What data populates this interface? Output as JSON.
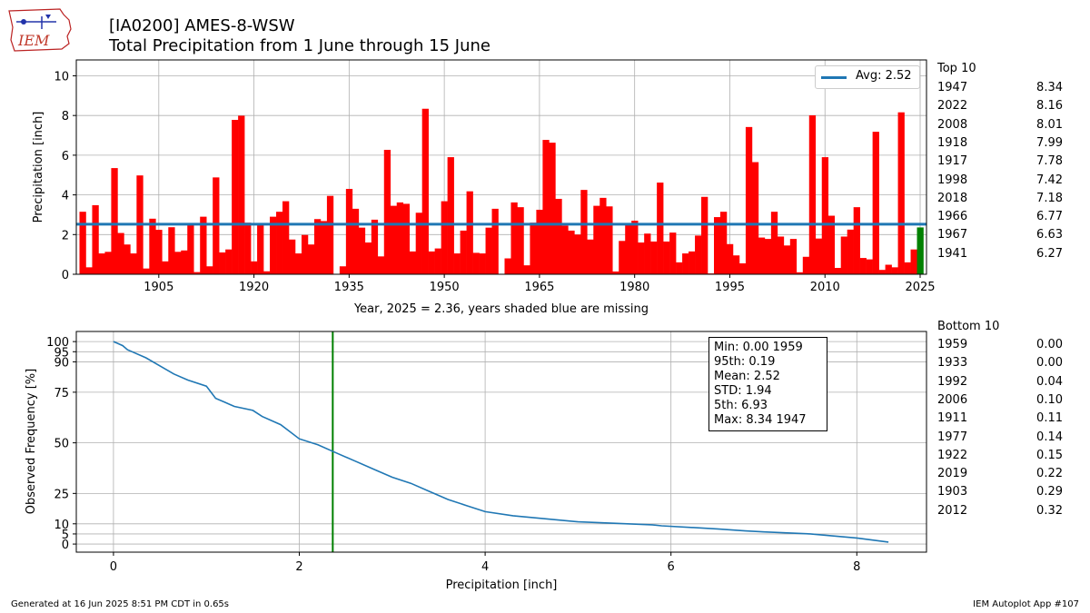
{
  "header": {
    "title_line1": "[IA0200] AMES-8-WSW",
    "title_line2": "Total Precipitation from 1 June through 15 June",
    "logo_text": "IEM"
  },
  "footer": {
    "generated": "Generated at 16 Jun 2025 8:51 PM CDT in 0.65s",
    "app": "IEM Autoplot App #107"
  },
  "top10": {
    "header": "Top 10",
    "rows": [
      {
        "year": "1947",
        "value": "8.34"
      },
      {
        "year": "2022",
        "value": "8.16"
      },
      {
        "year": "2008",
        "value": "8.01"
      },
      {
        "year": "1918",
        "value": "7.99"
      },
      {
        "year": "1917",
        "value": "7.78"
      },
      {
        "year": "1998",
        "value": "7.42"
      },
      {
        "year": "2018",
        "value": "7.18"
      },
      {
        "year": "1966",
        "value": "6.77"
      },
      {
        "year": "1967",
        "value": "6.63"
      },
      {
        "year": "1941",
        "value": "6.27"
      }
    ]
  },
  "bottom10": {
    "header": "Bottom 10",
    "rows": [
      {
        "year": "1959",
        "value": "0.00"
      },
      {
        "year": "1933",
        "value": "0.00"
      },
      {
        "year": "1992",
        "value": "0.04"
      },
      {
        "year": "2006",
        "value": "0.10"
      },
      {
        "year": "1911",
        "value": "0.11"
      },
      {
        "year": "1977",
        "value": "0.14"
      },
      {
        "year": "1922",
        "value": "0.15"
      },
      {
        "year": "2019",
        "value": "0.22"
      },
      {
        "year": "1903",
        "value": "0.29"
      },
      {
        "year": "2012",
        "value": "0.32"
      }
    ]
  },
  "stats": [
    "Min: 0.00 1959",
    "95th: 0.19",
    "Mean: 2.52",
    "STD: 1.94",
    "5th: 6.93",
    "Max: 8.34 1947"
  ],
  "colors": {
    "bar": "#ff0000",
    "current_year_bar": "#008000",
    "average_line": "#1f77b4",
    "cdf_line": "#1f77b4",
    "marker_line": "#008000",
    "grid": "#b0b0b0"
  },
  "chart_data": [
    {
      "type": "bar",
      "ylabel": "Precipitation [inch]",
      "xlabel": "Year, 2025 = 2.36, years shaded blue are missing",
      "xlim": [
        1892,
        2026
      ],
      "ylim": [
        0,
        10.8
      ],
      "xticks": [
        1905,
        1920,
        1935,
        1950,
        1965,
        1980,
        1995,
        2010,
        2025
      ],
      "yticks": [
        0,
        2,
        4,
        6,
        8,
        10
      ],
      "grid": true,
      "legend": {
        "label": "Avg: 2.52",
        "placement": "top-right"
      },
      "average": 2.52,
      "highlight_year": 2025,
      "x": [
        1893,
        1894,
        1895,
        1896,
        1897,
        1898,
        1899,
        1900,
        1901,
        1902,
        1903,
        1904,
        1905,
        1906,
        1907,
        1908,
        1909,
        1910,
        1911,
        1912,
        1913,
        1914,
        1915,
        1916,
        1917,
        1918,
        1919,
        1920,
        1921,
        1922,
        1923,
        1924,
        1925,
        1926,
        1927,
        1928,
        1929,
        1930,
        1931,
        1932,
        1933,
        1934,
        1935,
        1936,
        1937,
        1938,
        1939,
        1940,
        1941,
        1942,
        1943,
        1944,
        1945,
        1946,
        1947,
        1948,
        1949,
        1950,
        1951,
        1952,
        1953,
        1954,
        1955,
        1956,
        1957,
        1958,
        1959,
        1960,
        1961,
        1962,
        1963,
        1964,
        1965,
        1966,
        1967,
        1968,
        1969,
        1970,
        1971,
        1972,
        1973,
        1974,
        1975,
        1976,
        1977,
        1978,
        1979,
        1980,
        1981,
        1982,
        1983,
        1984,
        1985,
        1986,
        1987,
        1988,
        1989,
        1990,
        1991,
        1992,
        1993,
        1994,
        1995,
        1996,
        1997,
        1998,
        1999,
        2000,
        2001,
        2002,
        2003,
        2004,
        2005,
        2006,
        2007,
        2008,
        2009,
        2010,
        2011,
        2012,
        2013,
        2014,
        2015,
        2016,
        2017,
        2018,
        2019,
        2020,
        2021,
        2022,
        2023,
        2024,
        2025
      ],
      "values": [
        3.15,
        0.35,
        3.48,
        1.05,
        1.13,
        5.35,
        2.08,
        1.5,
        1.05,
        4.98,
        0.29,
        2.8,
        2.24,
        0.65,
        2.37,
        1.13,
        1.2,
        2.48,
        0.11,
        2.9,
        0.4,
        4.88,
        1.1,
        1.25,
        7.78,
        7.99,
        2.6,
        0.65,
        2.5,
        0.15,
        2.9,
        3.15,
        3.68,
        1.75,
        1.05,
        1.98,
        1.5,
        2.78,
        2.68,
        3.95,
        0.0,
        0.4,
        4.3,
        3.3,
        2.35,
        1.6,
        2.75,
        0.9,
        6.27,
        3.45,
        3.62,
        3.55,
        1.15,
        3.1,
        8.34,
        1.15,
        1.3,
        3.68,
        5.9,
        1.05,
        2.2,
        4.18,
        1.08,
        1.05,
        2.35,
        3.3,
        0.0,
        0.8,
        3.62,
        3.38,
        0.45,
        2.6,
        3.25,
        6.77,
        6.63,
        3.8,
        2.45,
        2.2,
        2.0,
        4.25,
        1.75,
        3.45,
        3.85,
        3.42,
        0.14,
        1.68,
        2.48,
        2.7,
        1.6,
        2.05,
        1.65,
        4.62,
        1.65,
        2.1,
        0.6,
        1.05,
        1.15,
        1.95,
        3.9,
        0.04,
        2.88,
        3.15,
        1.52,
        0.95,
        0.55,
        7.42,
        5.65,
        1.85,
        1.78,
        3.15,
        1.9,
        1.45,
        1.78,
        0.1,
        0.88,
        8.01,
        1.8,
        5.9,
        2.95,
        0.32,
        1.9,
        2.25,
        3.38,
        0.82,
        0.75,
        7.18,
        0.22,
        0.48,
        0.35,
        8.16,
        0.6,
        1.25,
        2.36
      ]
    },
    {
      "type": "line",
      "xlabel": "Precipitation [inch]",
      "ylabel": "Observed Frequency [%]",
      "xlim": [
        -0.4,
        8.75
      ],
      "ylim": [
        -4,
        105
      ],
      "xticks": [
        0,
        2,
        4,
        6,
        8
      ],
      "yticks": [
        0,
        5,
        10,
        25,
        50,
        75,
        90,
        95,
        100
      ],
      "grid": true,
      "marker_x": 2.36,
      "series": [
        {
          "x": [
            0,
            0.1,
            0.15,
            0.2,
            0.35,
            0.5,
            0.65,
            0.8,
            1.0,
            1.05,
            1.1,
            1.2,
            1.3,
            1.5,
            1.6,
            1.8,
            2.0,
            2.2,
            2.4,
            2.6,
            2.8,
            3.0,
            3.2,
            3.4,
            3.6,
            3.8,
            4.0,
            4.3,
            5.0,
            5.8,
            5.9,
            6.5,
            6.8,
            7.0,
            7.5,
            8.0,
            8.34
          ],
          "values": [
            100,
            98,
            96,
            95,
            92,
            88,
            84,
            81,
            78,
            75,
            72,
            70,
            68,
            66,
            63,
            59,
            52,
            49,
            45,
            41,
            37,
            33,
            30,
            26,
            22,
            19,
            16,
            14,
            11,
            9.5,
            9,
            7.5,
            6.5,
            6,
            5,
            3,
            1
          ]
        }
      ]
    }
  ]
}
